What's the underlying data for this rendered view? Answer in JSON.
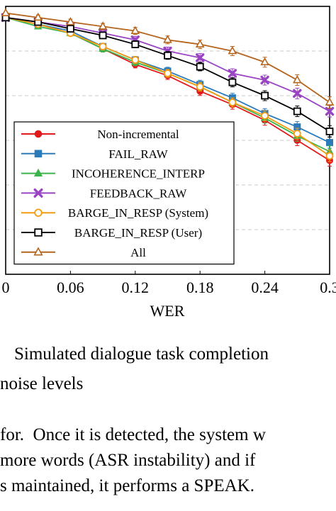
{
  "chart_data": {
    "type": "line",
    "xlabel": "WER",
    "x_ticks": [
      "0",
      "0.06",
      "0.12",
      "0.18",
      "0.24",
      "0.3"
    ],
    "xlim": [
      0,
      0.3
    ],
    "ylim": [
      0.4,
      1.0
    ],
    "y_ticks_grid": [
      0.5,
      0.6,
      0.7,
      0.8,
      0.9,
      1.0
    ],
    "grid": "horizontal dashed",
    "legend_position": "lower-left",
    "x": [
      0,
      0.03,
      0.06,
      0.09,
      0.12,
      0.15,
      0.18,
      0.21,
      0.24,
      0.27,
      0.3
    ],
    "series": [
      {
        "name": "Non-incremental",
        "color": "#e31a1c",
        "marker": "circle",
        "values": [
          0.975,
          0.96,
          0.94,
          0.905,
          0.87,
          0.845,
          0.81,
          0.78,
          0.745,
          0.7,
          0.655
        ]
      },
      {
        "name": "FAIL_RAW",
        "color": "#2b7bba",
        "marker": "square",
        "values": [
          0.975,
          0.96,
          0.945,
          0.91,
          0.88,
          0.855,
          0.825,
          0.795,
          0.76,
          0.73,
          0.695
        ]
      },
      {
        "name": "INCOHERENCE_INTERP",
        "color": "#3cb44b",
        "marker": "triangle",
        "values": [
          0.975,
          0.955,
          0.94,
          0.905,
          0.875,
          0.85,
          0.82,
          0.785,
          0.75,
          0.71,
          0.675
        ]
      },
      {
        "name": "FEEDBACK_RAW",
        "color": "#9a44c4",
        "marker": "x",
        "values": [
          0.975,
          0.965,
          0.955,
          0.94,
          0.925,
          0.9,
          0.885,
          0.85,
          0.835,
          0.805,
          0.765
        ]
      },
      {
        "name": "BARGE_IN_RESP (System)",
        "color": "#f39c12",
        "marker": "circle-open",
        "values": [
          0.975,
          0.96,
          0.94,
          0.91,
          0.88,
          0.85,
          0.82,
          0.785,
          0.755,
          0.715,
          0.665
        ]
      },
      {
        "name": "BARGE_IN_RESP (User)",
        "color": "#000000",
        "marker": "square-open",
        "values": [
          0.975,
          0.965,
          0.95,
          0.935,
          0.915,
          0.89,
          0.865,
          0.83,
          0.8,
          0.765,
          0.72
        ]
      },
      {
        "name": "All",
        "color": "#b5651d",
        "marker": "triangle-open",
        "values": [
          0.985,
          0.975,
          0.965,
          0.955,
          0.945,
          0.925,
          0.915,
          0.9,
          0.875,
          0.835,
          0.785
        ]
      }
    ]
  },
  "caption": {
    "line1": "Simulated dialogue task completion",
    "line2": "noise levels"
  },
  "body_text": {
    "line1": "for.  Once it is detected, the system w",
    "line2": "more words (ASR instability) and if",
    "line3": "s maintained, it performs a SPEAK."
  }
}
